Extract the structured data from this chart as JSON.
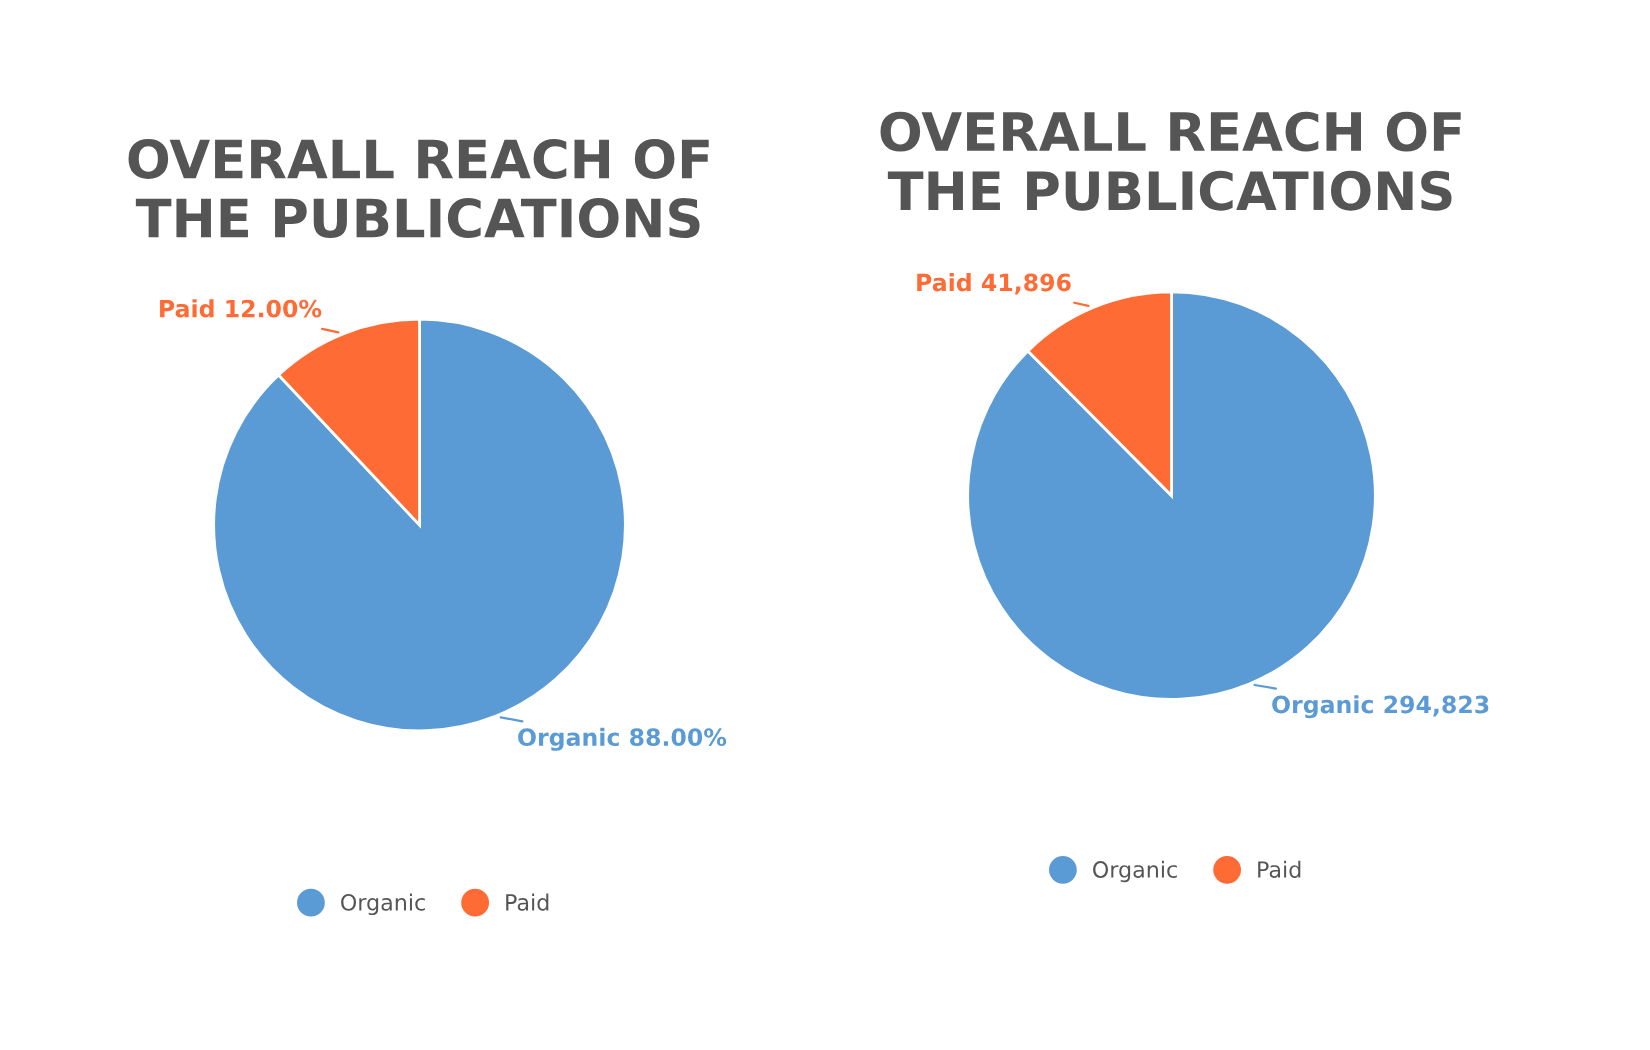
{
  "chart_data": [
    {
      "type": "pie",
      "title": "OVERALL REACH OF\nTHE PUBLICATIONS",
      "categories": [
        "Organic",
        "Paid"
      ],
      "values": [
        88,
        12
      ],
      "colors": [
        "#5a9bd5",
        "#ff6b35"
      ],
      "value_labels": [
        "88.00%",
        "12.00%"
      ],
      "legend": "bottom"
    },
    {
      "type": "pie",
      "title": "OVERALL REACH OF\nTHE PUBLICATIONS",
      "categories": [
        "Organic",
        "Paid"
      ],
      "values": [
        294823,
        41896
      ],
      "colors": [
        "#5a9bd5",
        "#ff6b35"
      ],
      "value_labels": [
        "294,823",
        "41,896"
      ],
      "legend": "bottom"
    }
  ]
}
